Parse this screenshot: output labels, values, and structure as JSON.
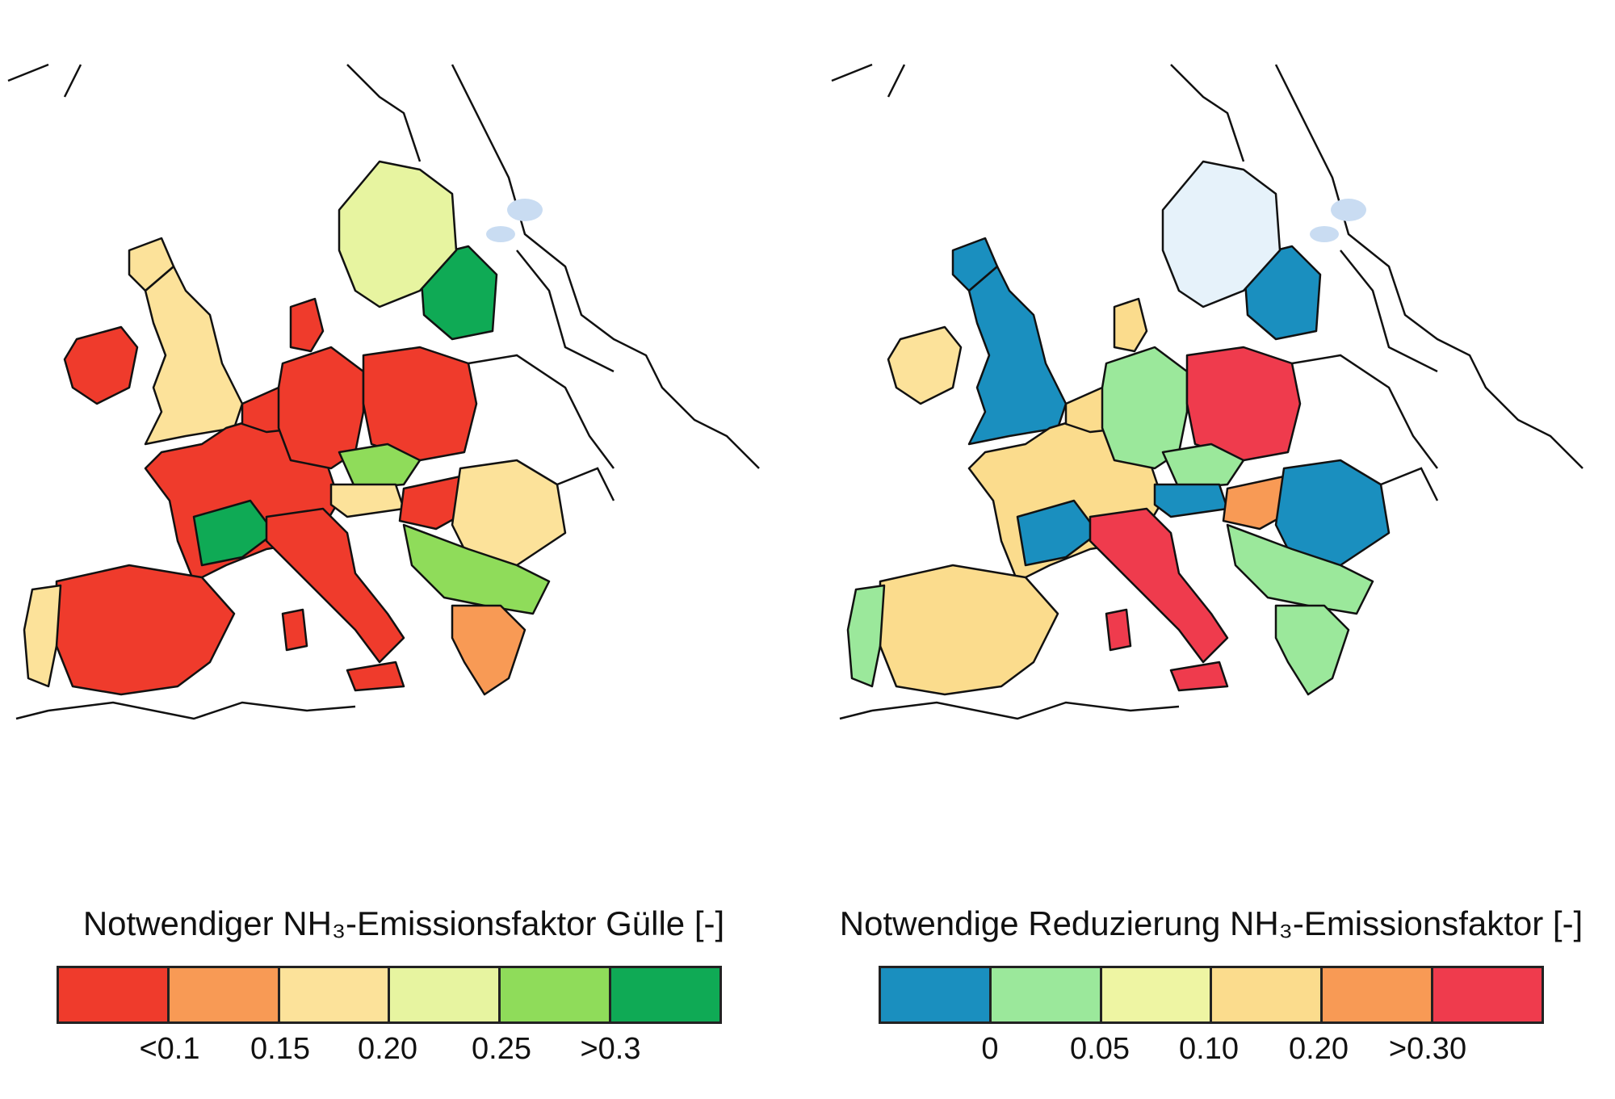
{
  "left_map": {
    "legend_title": "Notwendiger NH₃-Emissionsfaktor Gülle [-]",
    "colors": [
      "#ef3b2c",
      "#f89a55",
      "#fce29a",
      "#e7f4a0",
      "#8fdc5a",
      "#0faa55"
    ],
    "tick_labels": [
      "<0.1",
      "0.15",
      "0.20",
      "0.25",
      ">0.3"
    ]
  },
  "right_map": {
    "legend_title": "Notwendige Reduzierung NH₃-Emissionsfaktor [-]",
    "colors": [
      "#1a8fbf",
      "#9be89b",
      "#eef5a3",
      "#fbdc8d",
      "#f89a55",
      "#ef3b4d"
    ],
    "tick_labels": [
      "0",
      "0.05",
      "0.10",
      "0.20",
      ">0.30"
    ]
  },
  "region_colors_left": {
    "ireland": "#ef3b2c",
    "uk": "#fce29a",
    "france": "#ef3b2c",
    "france_south": "#0faa55",
    "spain": "#ef3b2c",
    "portugal": "#fce29a",
    "benelux": "#ef3b2c",
    "germany": "#ef3b2c",
    "denmark": "#ef3b2c",
    "poland": "#ef3b2c",
    "czech": "#8fdc5a",
    "austria": "#fce29a",
    "hungary": "#ef3b2c",
    "romania": "#fce29a",
    "italy": "#ef3b2c",
    "baltics": "#0faa55",
    "sweden": "#e7f4a0",
    "balkans": "#8fdc5a",
    "greece": "#f89a55"
  },
  "region_colors_right": {
    "ireland": "#fce29a",
    "uk": "#1a8fbf",
    "france": "#fbdc8d",
    "france_south": "#1a8fbf",
    "spain": "#fbdc8d",
    "portugal": "#9be89b",
    "benelux": "#fbdc8d",
    "germany": "#9be89b",
    "denmark": "#fbdc8d",
    "poland": "#ef3b4d",
    "czech": "#9be89b",
    "austria": "#1a8fbf",
    "hungary": "#f89a55",
    "romania": "#1a8fbf",
    "italy": "#ef3b4d",
    "baltics": "#1a8fbf",
    "sweden": "#e6f2fa",
    "balkans": "#9be89b",
    "greece": "#9be89b"
  }
}
